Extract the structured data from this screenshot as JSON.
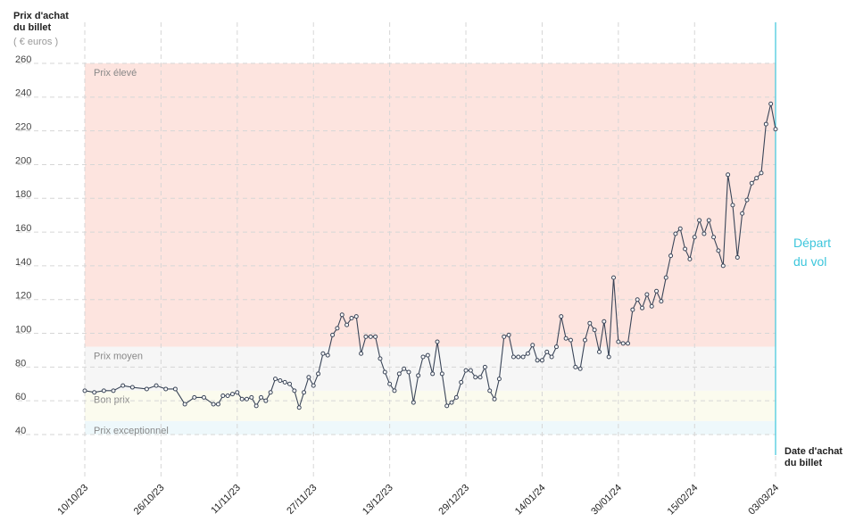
{
  "chart_data": {
    "type": "line",
    "y_label": "Prix d'achat\ndu billet",
    "y_unit": "( € euros )",
    "x_label": "Date d'achat\ndu billet",
    "ylim": [
      40,
      260
    ],
    "yticks": [
      40,
      60,
      80,
      100,
      120,
      140,
      160,
      180,
      200,
      220,
      240,
      260
    ],
    "grid": true,
    "xlim": [
      "10/10/23",
      "03/03/24"
    ],
    "xticks": [
      "10/10/23",
      "26/10/23",
      "11/11/23",
      "27/11/23",
      "13/12/23",
      "29/12/23",
      "14/01/24",
      "30/01/24",
      "15/02/24",
      "03/03/24"
    ],
    "bands": [
      {
        "label": "Prix élevé",
        "from": 92,
        "to": 260,
        "color": "#fde4df"
      },
      {
        "label": "Prix moyen",
        "from": 66,
        "to": 92,
        "color": "#f6f6f6"
      },
      {
        "label": "Bon prix",
        "from": 48,
        "to": 66,
        "color": "#fbfbee"
      },
      {
        "label": "Prix exceptionnel",
        "from": 40,
        "to": 48,
        "color": "#eef8fb"
      }
    ],
    "annotation": {
      "label": "Départ\ndu vol",
      "x": "03/03/24",
      "color": "#3cc6dc"
    },
    "x": [
      "10/10/23",
      "12/10/23",
      "14/10/23",
      "16/10/23",
      "18/10/23",
      "20/10/23",
      "23/10/23",
      "25/10/23",
      "27/10/23",
      "29/10/23",
      "31/10/23",
      "02/11/23",
      "04/11/23",
      "06/11/23",
      "07/11/23",
      "08/11/23",
      "09/11/23",
      "10/11/23",
      "11/11/23",
      "12/11/23",
      "13/11/23",
      "14/11/23",
      "15/11/23",
      "16/11/23",
      "17/11/23",
      "18/11/23",
      "19/11/23",
      "20/11/23",
      "21/11/23",
      "22/11/23",
      "23/11/23",
      "24/11/23",
      "25/11/23",
      "26/11/23",
      "27/11/23",
      "28/11/23",
      "29/11/23",
      "30/11/23",
      "01/12/23",
      "02/12/23",
      "03/12/23",
      "04/12/23",
      "05/12/23",
      "06/12/23",
      "07/12/23",
      "08/12/23",
      "09/12/23",
      "10/12/23",
      "11/12/23",
      "12/12/23",
      "13/12/23",
      "14/12/23",
      "15/12/23",
      "16/12/23",
      "17/12/23",
      "18/12/23",
      "19/12/23",
      "20/12/23",
      "21/12/23",
      "22/12/23",
      "23/12/23",
      "24/12/23",
      "25/12/23",
      "26/12/23",
      "27/12/23",
      "28/12/23",
      "29/12/23",
      "30/12/23",
      "31/12/23",
      "01/01/24",
      "02/01/24",
      "03/01/24",
      "04/01/24",
      "05/01/24",
      "06/01/24",
      "07/01/24",
      "08/01/24",
      "09/01/24",
      "10/01/24",
      "11/01/24",
      "12/01/24",
      "13/01/24",
      "14/01/24",
      "15/01/24",
      "16/01/24",
      "17/01/24",
      "18/01/24",
      "19/01/24",
      "20/01/24",
      "21/01/24",
      "22/01/24",
      "23/01/24",
      "24/01/24",
      "25/01/24",
      "26/01/24",
      "27/01/24",
      "28/01/24",
      "29/01/24",
      "30/01/24",
      "31/01/24",
      "01/02/24",
      "02/02/24",
      "03/02/24",
      "04/02/24",
      "05/02/24",
      "06/02/24",
      "07/02/24",
      "08/02/24",
      "09/02/24",
      "10/02/24",
      "11/02/24",
      "12/02/24",
      "13/02/24",
      "14/02/24",
      "15/02/24",
      "16/02/24",
      "17/02/24",
      "18/02/24",
      "19/02/24",
      "20/02/24",
      "21/02/24",
      "22/02/24",
      "23/02/24",
      "24/02/24",
      "25/02/24",
      "26/02/24",
      "27/02/24",
      "28/02/24",
      "29/02/24",
      "01/03/24",
      "02/03/24",
      "03/03/24"
    ],
    "series": [
      {
        "color": "#3a4558",
        "values": [
          66,
          65,
          66,
          66,
          69,
          68,
          67,
          69,
          67,
          67,
          58,
          62,
          62,
          58,
          58,
          63,
          63,
          64,
          65,
          61,
          61,
          62,
          57,
          62,
          60,
          65,
          73,
          72,
          71,
          70,
          66,
          56,
          65,
          74,
          69,
          76,
          88,
          87,
          99,
          103,
          111,
          105,
          109,
          110,
          88,
          98,
          98,
          98,
          85,
          77,
          70,
          66,
          76,
          79,
          77,
          59,
          75,
          86,
          87,
          76,
          95,
          76,
          57,
          59,
          62,
          71,
          78,
          78,
          74,
          74,
          80,
          66,
          61,
          73,
          98,
          99,
          86,
          86,
          86,
          88,
          93,
          84,
          84,
          89,
          86,
          92,
          110,
          97,
          96,
          80,
          79,
          96,
          106,
          102,
          89,
          107,
          86,
          133,
          95,
          94,
          94,
          114,
          120,
          115,
          123,
          116,
          125,
          119,
          133,
          146,
          159,
          162,
          150,
          144,
          157,
          167,
          159,
          167,
          157,
          149,
          140,
          194,
          176,
          145,
          171,
          179,
          189,
          192,
          195,
          224,
          236,
          221
        ]
      }
    ]
  }
}
